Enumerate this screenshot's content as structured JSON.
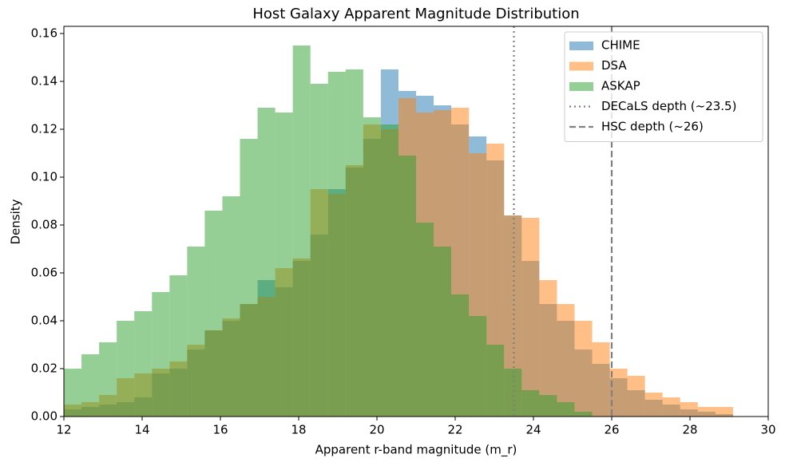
{
  "chart_data": {
    "type": "histogram",
    "title": "Host Galaxy Apparent Magnitude Distribution",
    "x_label": "Apparent r-band magnitude (m_r)",
    "y_label": "Density",
    "bins": [
      12,
      12.45,
      12.9,
      13.35,
      13.8,
      14.25,
      14.7,
      15.15,
      15.6,
      16.05,
      16.5,
      16.95,
      17.4,
      17.85,
      18.3,
      18.75,
      19.2,
      19.65,
      20.1,
      20.55,
      21,
      21.45,
      21.9,
      22.35,
      22.8,
      23.25,
      23.7,
      24.15,
      24.6,
      25.05,
      25.5,
      25.95,
      26.4,
      26.85,
      27.3,
      27.75,
      28.2,
      28.65,
      29.1,
      29.55,
      30
    ],
    "alpha": 0.5,
    "series": [
      {
        "name": "CHIME",
        "color": "#1f77b4",
        "values": [
          0.003,
          0.004,
          0.005,
          0.006,
          0.008,
          0.018,
          0.02,
          0.028,
          0.036,
          0.04,
          0.047,
          0.057,
          0.054,
          0.065,
          0.076,
          0.095,
          0.104,
          0.116,
          0.145,
          0.136,
          0.134,
          0.13,
          0.122,
          0.117,
          0.107,
          0.084,
          0.065,
          0.047,
          0.04,
          0.028,
          0.022,
          0.016,
          0.011,
          0.007,
          0.005,
          0.003,
          0.002,
          0.001,
          0,
          0
        ]
      },
      {
        "name": "DSA",
        "color": "#ff7f0e",
        "values": [
          0.005,
          0.006,
          0.009,
          0.016,
          0.018,
          0.02,
          0.023,
          0.03,
          0.036,
          0.041,
          0.047,
          0.05,
          0.062,
          0.066,
          0.095,
          0.093,
          0.105,
          0.122,
          0.12,
          0.133,
          0.127,
          0.128,
          0.129,
          0.11,
          0.114,
          0.084,
          0.083,
          0.057,
          0.047,
          0.04,
          0.031,
          0.02,
          0.017,
          0.01,
          0.008,
          0.006,
          0.004,
          0.004,
          0,
          0
        ]
      },
      {
        "name": "ASKAP",
        "color": "#2ca02c",
        "values": [
          0.02,
          0.026,
          0.031,
          0.04,
          0.044,
          0.052,
          0.059,
          0.071,
          0.086,
          0.092,
          0.116,
          0.129,
          0.127,
          0.155,
          0.139,
          0.144,
          0.145,
          0.125,
          0.122,
          0.109,
          0.081,
          0.071,
          0.051,
          0.042,
          0.03,
          0.02,
          0.011,
          0.009,
          0.006,
          0.002,
          0,
          0,
          0,
          0,
          0,
          0,
          0,
          0,
          0,
          0
        ]
      }
    ],
    "vlines": [
      {
        "name": "DECaLS depth (~23.5)",
        "value": 23.5,
        "style": "dotted",
        "color": "#808080"
      },
      {
        "name": "HSC depth (~26)",
        "value": 26,
        "style": "dashed",
        "color": "#808080"
      }
    ],
    "xlim": [
      12,
      30
    ],
    "ylim": [
      0,
      0.163
    ],
    "xticks": [
      12,
      14,
      16,
      18,
      20,
      22,
      24,
      26,
      28,
      30
    ],
    "yticks": [
      {
        "value": 0,
        "label": "0.00"
      },
      {
        "value": 0.02,
        "label": "0.02"
      },
      {
        "value": 0.04,
        "label": "0.04"
      },
      {
        "value": 0.06,
        "label": "0.06"
      },
      {
        "value": 0.08,
        "label": "0.08"
      },
      {
        "value": 0.1,
        "label": "0.10"
      },
      {
        "value": 0.12,
        "label": "0.12"
      },
      {
        "value": 0.14,
        "label": "0.14"
      },
      {
        "value": 0.16,
        "label": "0.16"
      }
    ],
    "legend": "upper right"
  }
}
